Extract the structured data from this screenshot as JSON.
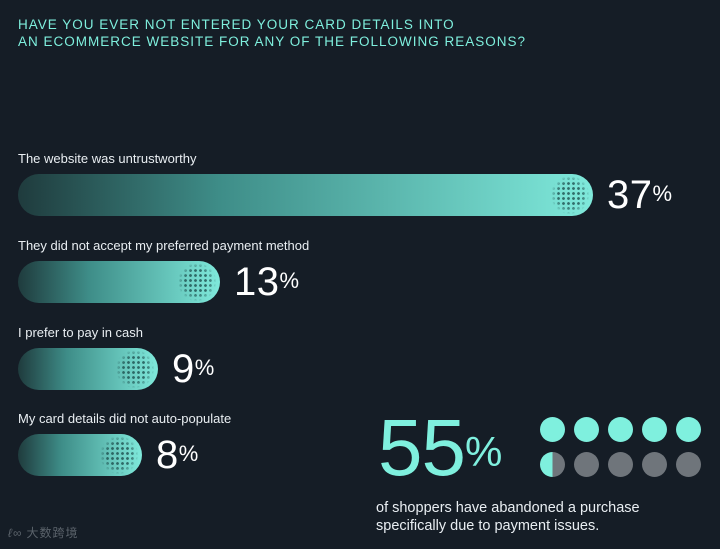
{
  "title_lines": [
    "HAVE YOU EVER NOT ENTERED YOUR CARD DETAILS INTO",
    "AN ECOMMERCE WEBSITE FOR ANY OF THE FOLLOWING REASONS?"
  ],
  "chart_data": {
    "type": "bar",
    "orientation": "horizontal",
    "title": "HAVE YOU EVER NOT ENTERED YOUR CARD DETAILS INTO AN ECOMMERCE WEBSITE FOR ANY OF THE FOLLOWING REASONS?",
    "categories": [
      "The website was untrustworthy",
      "They did not accept my preferred payment method",
      "I prefer to pay in cash",
      "My card details did not auto-populate"
    ],
    "values": [
      37,
      13,
      9,
      8
    ],
    "value_labels": [
      "37",
      "13",
      "9",
      "8"
    ],
    "unit": "%",
    "bar_color": "#7ff0de",
    "background": "#151d26"
  },
  "stat": {
    "value": "55",
    "unit": "%",
    "caption_lines": [
      "of shoppers have abandoned a purchase",
      "specifically due to payment issues."
    ],
    "dots_total": 10,
    "dots_filled": 5.5,
    "filled_color": "#7ff0de",
    "empty_color": "#6f757b"
  },
  "logo": {
    "mark": "ℓ∞",
    "text": "大数跨境"
  }
}
